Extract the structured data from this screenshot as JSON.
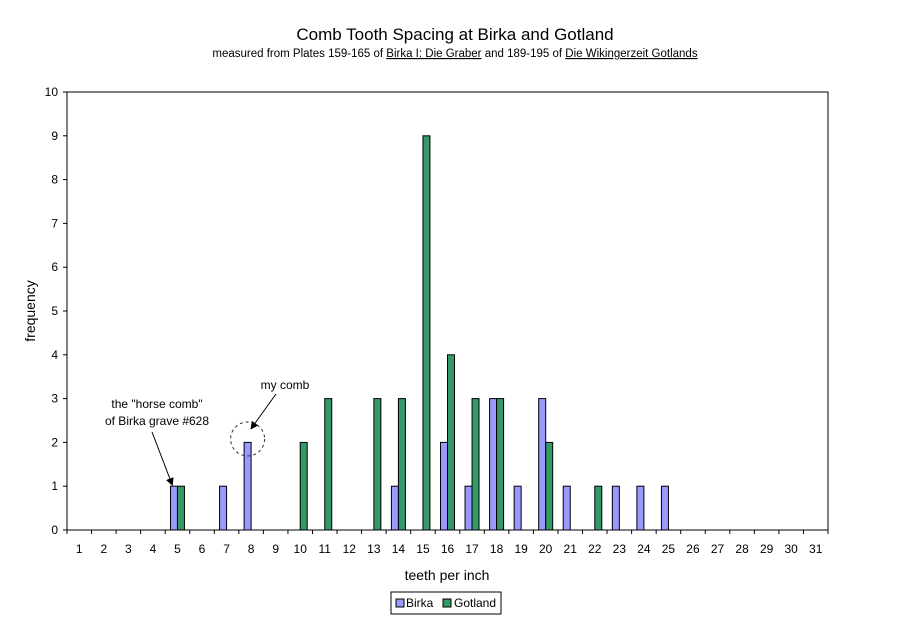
{
  "chart_data": {
    "type": "bar",
    "title": "Comb Tooth Spacing at Birka and Gotland",
    "subtitle": {
      "parts": [
        {
          "text": "measured from Plates 159-165 of ",
          "underline": false
        },
        {
          "text": "Birka I: Die Graber",
          "underline": true
        },
        {
          "text": " and 189-195 of ",
          "underline": false
        },
        {
          "text": "Die Wikingerzeit Gotlands",
          "underline": true
        }
      ]
    },
    "xlabel": "teeth per inch",
    "ylabel": "frequency",
    "ylim": [
      0,
      10
    ],
    "yticks": [
      "0",
      "1",
      "2",
      "3",
      "4",
      "5",
      "6",
      "7",
      "8",
      "9",
      "10"
    ],
    "categories": [
      "1",
      "2",
      "3",
      "4",
      "5",
      "6",
      "7",
      "8",
      "9",
      "10",
      "11",
      "12",
      "13",
      "14",
      "15",
      "16",
      "17",
      "18",
      "19",
      "20",
      "21",
      "22",
      "23",
      "24",
      "25",
      "26",
      "27",
      "28",
      "29",
      "30",
      "31"
    ],
    "series": [
      {
        "name": "Birka",
        "color": "#9999ff",
        "values": [
          0,
          0,
          0,
          0,
          1,
          0,
          1,
          2,
          0,
          0,
          0,
          0,
          0,
          1,
          0,
          2,
          1,
          3,
          1,
          3,
          1,
          0,
          1,
          1,
          1,
          0,
          0,
          0,
          0,
          0,
          0
        ]
      },
      {
        "name": "Gotland",
        "color": "#339966",
        "values": [
          0,
          0,
          0,
          0,
          1,
          0,
          0,
          0,
          0,
          2,
          3,
          0,
          3,
          3,
          9,
          4,
          3,
          3,
          0,
          2,
          0,
          1,
          0,
          0,
          0,
          0,
          0,
          0,
          0,
          0,
          0
        ]
      }
    ],
    "grid": false,
    "legend": "bottom",
    "annotations": [
      {
        "lines": [
          "the \"horse comb\"",
          "of Birka grave #628"
        ],
        "points_to": {
          "category": "5",
          "series": "Birka"
        }
      },
      {
        "lines": [
          "my comb"
        ],
        "points_to": {
          "category": "8",
          "series": "Birka"
        },
        "circled": true
      }
    ]
  }
}
